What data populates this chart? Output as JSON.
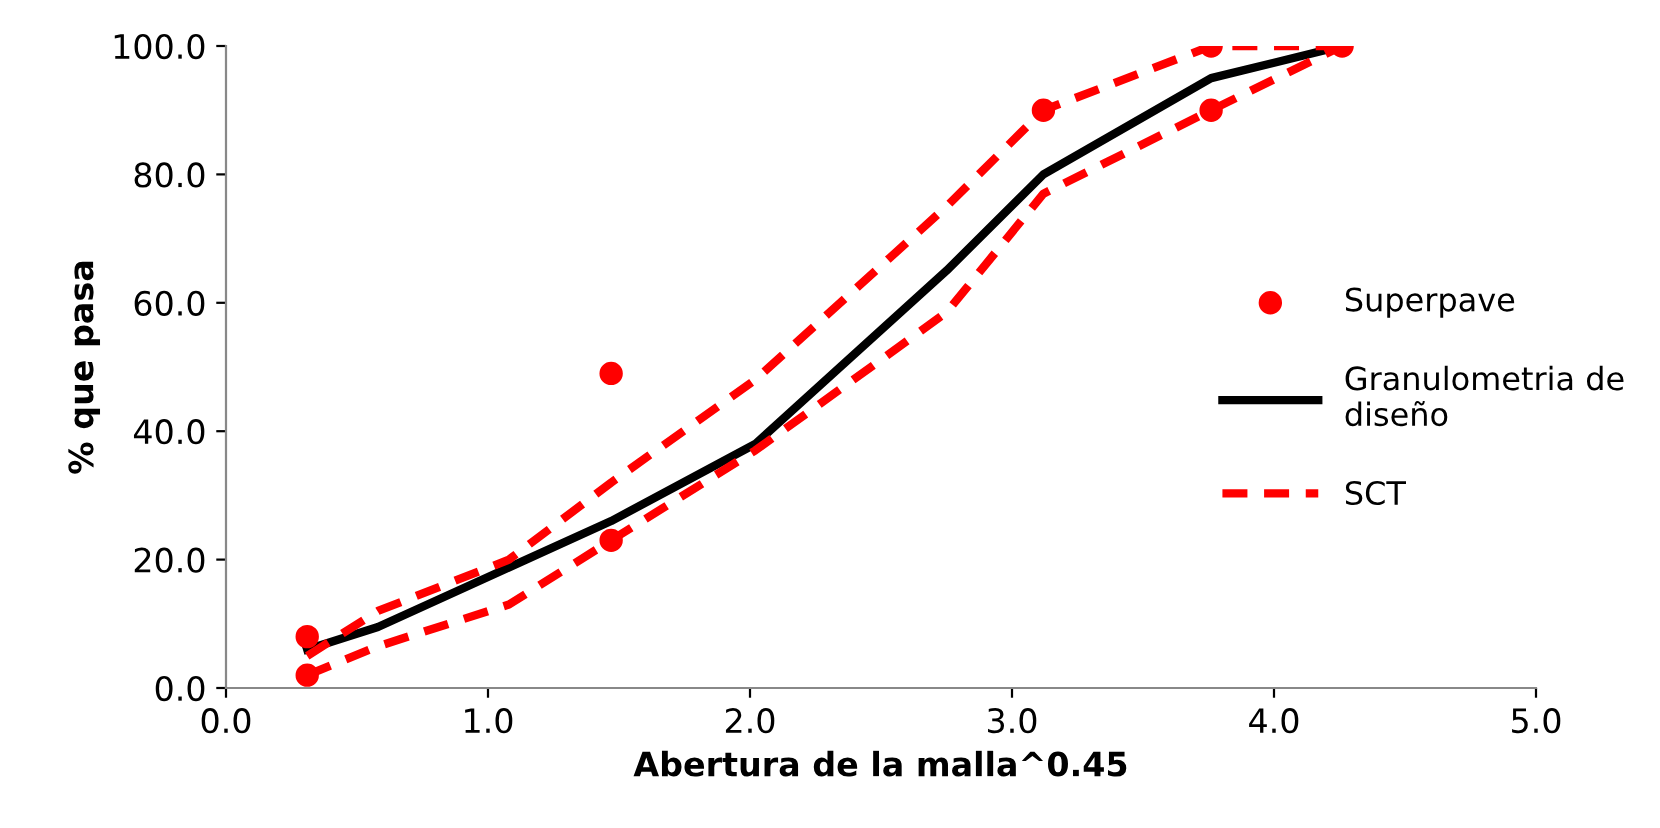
{
  "chart_data": {
    "type": "line",
    "xlabel": "Abertura de la malla^0.45",
    "ylabel": "% que pasa",
    "xlim": [
      0,
      5
    ],
    "xticks": [
      {
        "value": 0,
        "label": "0.0"
      },
      {
        "value": 1,
        "label": "1.0"
      },
      {
        "value": 2,
        "label": "2.0"
      },
      {
        "value": 3,
        "label": "3.0"
      },
      {
        "value": 4,
        "label": "4.0"
      },
      {
        "value": 5,
        "label": "5.0"
      }
    ],
    "ylim": [
      0,
      100
    ],
    "yticks": [
      {
        "value": 0,
        "label": "0.0"
      },
      {
        "value": 20,
        "label": "20.0"
      },
      {
        "value": 40,
        "label": "40.0"
      },
      {
        "value": 60,
        "label": "60.0"
      },
      {
        "value": 80,
        "label": "80.0"
      },
      {
        "value": 100,
        "label": "100.0"
      }
    ],
    "grid": false,
    "legend": "right",
    "series": [
      {
        "name": "Superpave",
        "type": "scatter",
        "marker": "circle",
        "color": "#ff0000",
        "x": [
          0.31,
          0.31,
          1.47,
          1.47,
          3.12,
          3.76,
          3.76,
          4.26
        ],
        "values": [
          2,
          8,
          23,
          49,
          90,
          90,
          100,
          100
        ]
      },
      {
        "name": "Granulometria de diseño",
        "line_style": "solid",
        "marker": "none",
        "color": "#000000",
        "x": [
          0.31,
          0.58,
          1.47,
          2.02,
          2.75,
          3.12,
          3.76,
          4.26
        ],
        "values": [
          6,
          9.5,
          26,
          38,
          65,
          80,
          95,
          100
        ]
      },
      {
        "name": "SCT",
        "line_style": "dashed",
        "marker": "none",
        "color": "#ff0000",
        "x": [
          0.31,
          0.58,
          1.08,
          1.47,
          2.02,
          2.75,
          3.12,
          3.76,
          4.26
        ],
        "values": [
          5,
          12,
          20,
          32,
          48,
          75,
          90,
          100,
          100
        ]
      },
      {
        "line_style": "dashed",
        "marker": "none",
        "color": "#ff0000",
        "x": [
          0.31,
          0.58,
          1.08,
          1.47,
          2.02,
          2.75,
          3.12,
          3.76,
          4.26
        ],
        "values": [
          2,
          6.5,
          13,
          23,
          37,
          58.5,
          77,
          90,
          100
        ]
      }
    ]
  }
}
